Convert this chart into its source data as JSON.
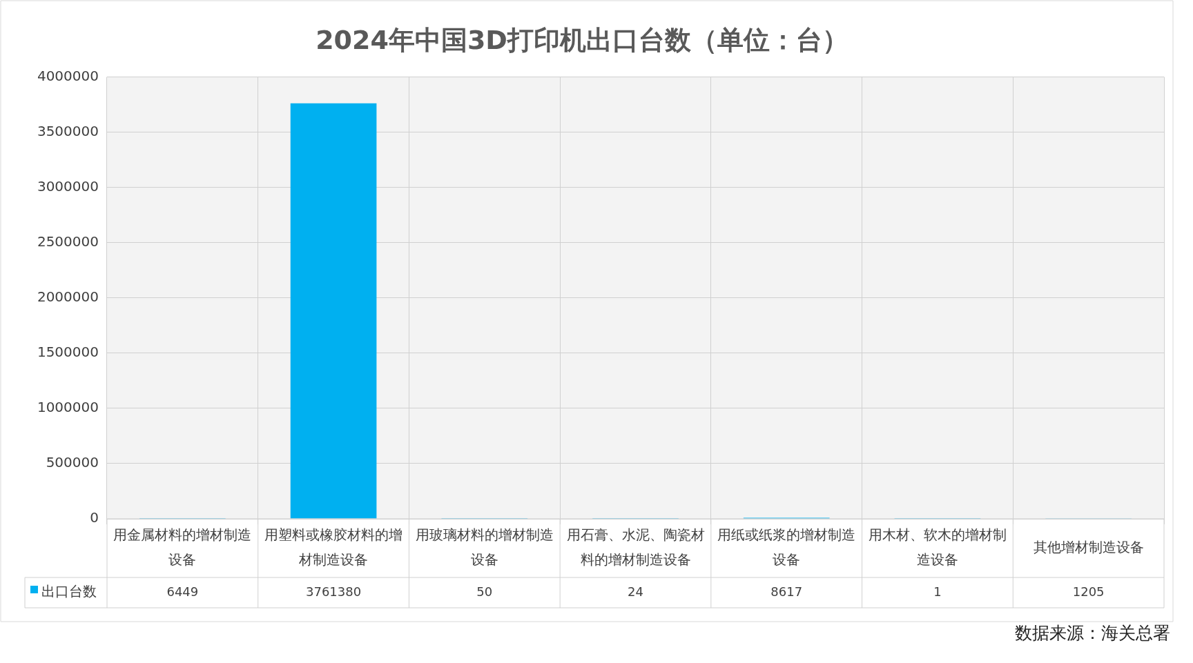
{
  "chart_data": {
    "type": "bar",
    "title": "2024年中国3D打印机出口台数（单位：台）",
    "categories": [
      "用金属材料的增材制造设备",
      "用塑料或橡胶材料的增材制造设备",
      "用玻璃材料的增材制造设备",
      "用石膏、水泥、陶瓷材料的增材制造设备",
      "用纸或纸浆的增材制造设备",
      "用木材、软木的增材制造设备",
      "其他增材制造设备"
    ],
    "series": [
      {
        "name": "出口台数",
        "color": "#00b0f0",
        "values": [
          6449,
          3761380,
          50,
          24,
          8617,
          1,
          1205
        ]
      }
    ],
    "ylim": [
      0,
      4000000
    ],
    "yticks": [
      0,
      500000,
      1000000,
      1500000,
      2000000,
      2500000,
      3000000,
      3500000,
      4000000
    ],
    "grid": true,
    "legend": "bottom left",
    "data_labels": true,
    "annotations": [
      "数据来源：海关总署"
    ]
  }
}
